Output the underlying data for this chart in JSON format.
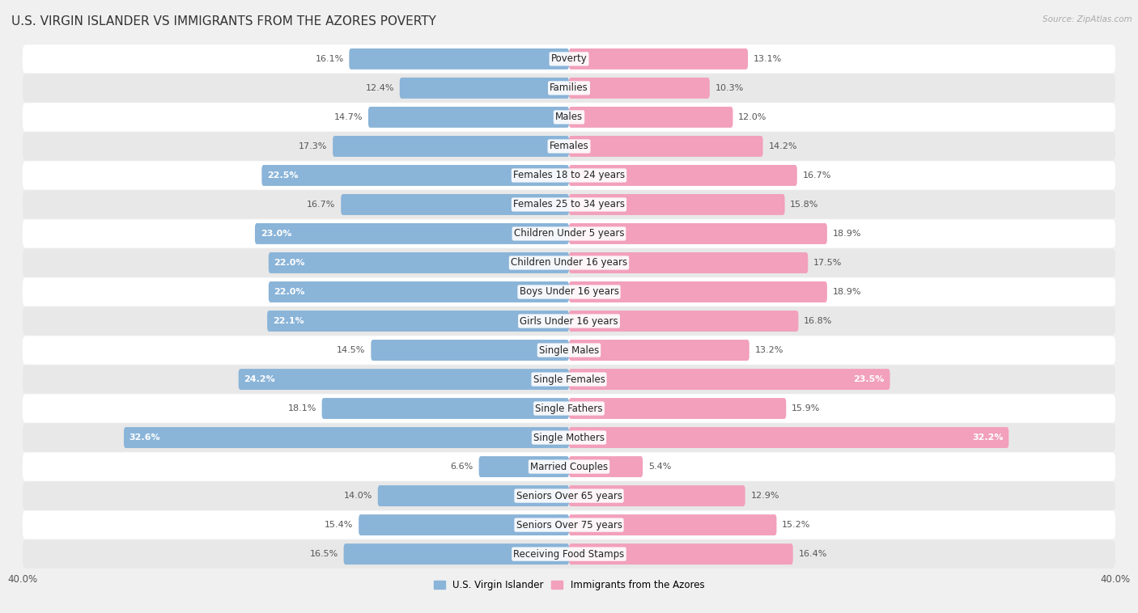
{
  "title": "U.S. VIRGIN ISLANDER VS IMMIGRANTS FROM THE AZORES POVERTY",
  "source": "Source: ZipAtlas.com",
  "categories": [
    "Poverty",
    "Families",
    "Males",
    "Females",
    "Females 18 to 24 years",
    "Females 25 to 34 years",
    "Children Under 5 years",
    "Children Under 16 years",
    "Boys Under 16 years",
    "Girls Under 16 years",
    "Single Males",
    "Single Females",
    "Single Fathers",
    "Single Mothers",
    "Married Couples",
    "Seniors Over 65 years",
    "Seniors Over 75 years",
    "Receiving Food Stamps"
  ],
  "left_values": [
    16.1,
    12.4,
    14.7,
    17.3,
    22.5,
    16.7,
    23.0,
    22.0,
    22.0,
    22.1,
    14.5,
    24.2,
    18.1,
    32.6,
    6.6,
    14.0,
    15.4,
    16.5
  ],
  "right_values": [
    13.1,
    10.3,
    12.0,
    14.2,
    16.7,
    15.8,
    18.9,
    17.5,
    18.9,
    16.8,
    13.2,
    23.5,
    15.9,
    32.2,
    5.4,
    12.9,
    15.2,
    16.4
  ],
  "left_color": "#8ab4d8",
  "right_color": "#f2a0bb",
  "left_label": "U.S. Virgin Islander",
  "right_label": "Immigrants from the Azores",
  "axis_max": 40.0,
  "background_color": "#f0f0f0",
  "row_color_light": "#ffffff",
  "row_color_dark": "#e8e8e8",
  "title_fontsize": 11,
  "label_fontsize": 8.5,
  "value_fontsize": 8,
  "source_fontsize": 7.5,
  "inside_label_threshold": 20.0
}
